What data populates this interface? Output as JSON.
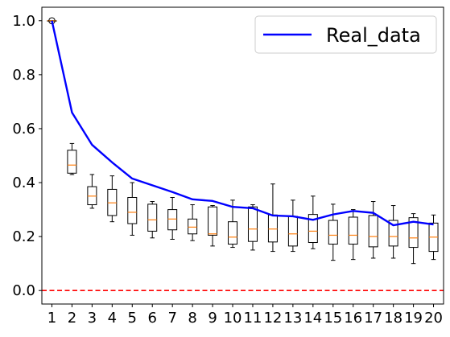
{
  "chart_data": {
    "type": "box",
    "x": [
      1,
      2,
      3,
      4,
      5,
      6,
      7,
      8,
      9,
      10,
      11,
      12,
      13,
      14,
      15,
      16,
      17,
      18,
      19,
      20
    ],
    "x_tick_labels": [
      "1",
      "2",
      "3",
      "4",
      "5",
      "6",
      "7",
      "8",
      "9",
      "10",
      "11",
      "12",
      "13",
      "14",
      "15",
      "16",
      "17",
      "18",
      "19",
      "20"
    ],
    "ylim": [
      -0.05,
      1.05
    ],
    "y_ticks": [
      0.0,
      0.2,
      0.4,
      0.6,
      0.8,
      1.0
    ],
    "y_tick_labels": [
      "0.0",
      "0.2",
      "0.4",
      "0.6",
      "0.8",
      "1.0"
    ],
    "legend": {
      "position": "top-right",
      "entries": [
        "Real_data"
      ]
    },
    "reference_line": {
      "y": 0.0,
      "color": "#ff0000",
      "style": "dashed"
    },
    "boxes": [
      {
        "x": 1,
        "whisker_low": 1.0,
        "q1": 1.0,
        "median": 1.0,
        "q3": 1.0,
        "whisker_high": 1.0,
        "outliers": [
          1.0
        ]
      },
      {
        "x": 2,
        "whisker_low": 0.43,
        "q1": 0.435,
        "median": 0.465,
        "q3": 0.52,
        "whisker_high": 0.545,
        "outliers": []
      },
      {
        "x": 3,
        "whisker_low": 0.305,
        "q1": 0.318,
        "median": 0.35,
        "q3": 0.385,
        "whisker_high": 0.43,
        "outliers": []
      },
      {
        "x": 4,
        "whisker_low": 0.255,
        "q1": 0.278,
        "median": 0.325,
        "q3": 0.375,
        "whisker_high": 0.425,
        "outliers": []
      },
      {
        "x": 5,
        "whisker_low": 0.205,
        "q1": 0.248,
        "median": 0.29,
        "q3": 0.345,
        "whisker_high": 0.4,
        "outliers": []
      },
      {
        "x": 6,
        "whisker_low": 0.195,
        "q1": 0.22,
        "median": 0.262,
        "q3": 0.32,
        "whisker_high": 0.33,
        "outliers": []
      },
      {
        "x": 7,
        "whisker_low": 0.19,
        "q1": 0.225,
        "median": 0.265,
        "q3": 0.3,
        "whisker_high": 0.345,
        "outliers": []
      },
      {
        "x": 8,
        "whisker_low": 0.185,
        "q1": 0.21,
        "median": 0.235,
        "q3": 0.265,
        "whisker_high": 0.318,
        "outliers": []
      },
      {
        "x": 9,
        "whisker_low": 0.165,
        "q1": 0.205,
        "median": 0.21,
        "q3": 0.31,
        "whisker_high": 0.315,
        "outliers": []
      },
      {
        "x": 10,
        "whisker_low": 0.16,
        "q1": 0.172,
        "median": 0.198,
        "q3": 0.255,
        "whisker_high": 0.335,
        "outliers": []
      },
      {
        "x": 11,
        "whisker_low": 0.15,
        "q1": 0.182,
        "median": 0.228,
        "q3": 0.31,
        "whisker_high": 0.318,
        "outliers": []
      },
      {
        "x": 12,
        "whisker_low": 0.145,
        "q1": 0.18,
        "median": 0.228,
        "q3": 0.28,
        "whisker_high": 0.395,
        "outliers": []
      },
      {
        "x": 13,
        "whisker_low": 0.145,
        "q1": 0.165,
        "median": 0.21,
        "q3": 0.275,
        "whisker_high": 0.335,
        "outliers": []
      },
      {
        "x": 14,
        "whisker_low": 0.155,
        "q1": 0.178,
        "median": 0.22,
        "q3": 0.282,
        "whisker_high": 0.35,
        "outliers": []
      },
      {
        "x": 15,
        "whisker_low": 0.112,
        "q1": 0.172,
        "median": 0.205,
        "q3": 0.26,
        "whisker_high": 0.32,
        "outliers": []
      },
      {
        "x": 16,
        "whisker_low": 0.115,
        "q1": 0.172,
        "median": 0.205,
        "q3": 0.272,
        "whisker_high": 0.3,
        "outliers": []
      },
      {
        "x": 17,
        "whisker_low": 0.12,
        "q1": 0.162,
        "median": 0.2,
        "q3": 0.278,
        "whisker_high": 0.33,
        "outliers": []
      },
      {
        "x": 18,
        "whisker_low": 0.12,
        "q1": 0.165,
        "median": 0.2,
        "q3": 0.26,
        "whisker_high": 0.315,
        "outliers": []
      },
      {
        "x": 19,
        "whisker_low": 0.1,
        "q1": 0.16,
        "median": 0.195,
        "q3": 0.27,
        "whisker_high": 0.285,
        "outliers": []
      },
      {
        "x": 20,
        "whisker_low": 0.115,
        "q1": 0.145,
        "median": 0.198,
        "q3": 0.25,
        "whisker_high": 0.28,
        "outliers": []
      }
    ],
    "series": [
      {
        "name": "Real_data",
        "type": "line",
        "color": "#0000ff",
        "x": [
          1,
          2,
          3,
          4,
          5,
          6,
          7,
          8,
          9,
          10,
          11,
          12,
          13,
          14,
          15,
          16,
          17,
          18,
          19,
          20
        ],
        "values": [
          1.0,
          0.66,
          0.54,
          0.475,
          0.415,
          0.39,
          0.365,
          0.338,
          0.332,
          0.31,
          0.305,
          0.278,
          0.275,
          0.262,
          0.282,
          0.295,
          0.288,
          0.242,
          0.255,
          0.245
        ]
      }
    ],
    "colors": {
      "box": "#000000",
      "median": "#ff7f0e",
      "line": "#0000ff",
      "reference": "#ff0000"
    }
  }
}
